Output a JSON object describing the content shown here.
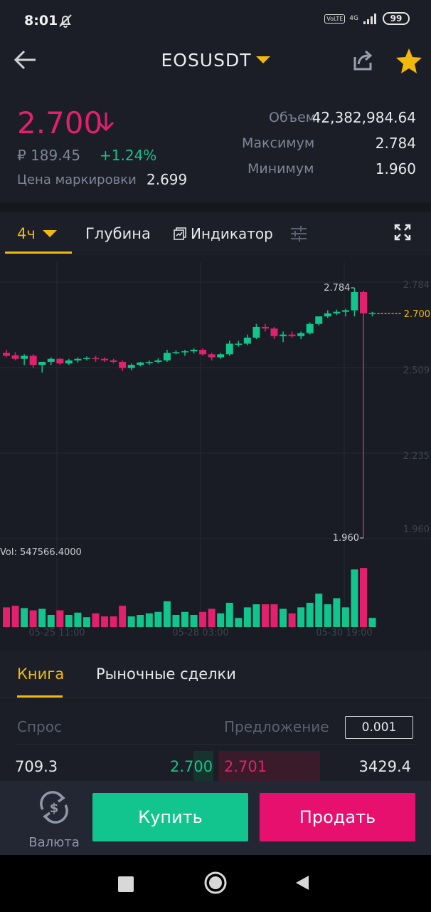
{
  "status_bar": {
    "time": "8:01",
    "network": "4G",
    "lte": "VoLTE",
    "battery": "99"
  },
  "header": {
    "pair": "EOSUSDT",
    "back_icon": "arrow-left-icon",
    "share_icon": "share-icon",
    "favorite_icon": "star-icon"
  },
  "ticker": {
    "last_price": "2.700",
    "fiat_price": "₽ 189.45",
    "change": "+1.24%",
    "mark_label": "Цена маркировки",
    "mark_value": "2.699",
    "volume_label": "Объем",
    "volume_value": "42,382,984.64",
    "high_label": "Максимум",
    "high_value": "2.784",
    "low_label": "Минимум",
    "low_value": "1.960"
  },
  "chart_tabs": {
    "interval": "4ч",
    "depth": "Глубина",
    "indicator": "Индикатор"
  },
  "chart_data": {
    "type": "candlestick",
    "x_labels": [
      "05-25 11:00",
      "05-28 03:00",
      "05-30 19:00"
    ],
    "y_ticks": [
      "2.784",
      "2.509",
      "2.235",
      "1.960"
    ],
    "y_range": [
      1.96,
      2.784
    ],
    "current_price": "2.700",
    "high_marker": "2.784",
    "low_marker": "1.960",
    "volume_label": "Vol: 547566.4000",
    "colors": {
      "up": "#12c48d",
      "down": "#e2206e",
      "price_line": "#f0b90b"
    },
    "candles": [
      {
        "o": 2.57,
        "h": 2.58,
        "l": 2.555,
        "c": 2.56,
        "v": 26
      },
      {
        "o": 2.562,
        "h": 2.572,
        "l": 2.545,
        "c": 2.55,
        "v": 28
      },
      {
        "o": 2.55,
        "h": 2.565,
        "l": 2.53,
        "c": 2.56,
        "v": 25
      },
      {
        "o": 2.56,
        "h": 2.565,
        "l": 2.52,
        "c": 2.53,
        "v": 22
      },
      {
        "o": 2.53,
        "h": 2.54,
        "l": 2.505,
        "c": 2.54,
        "v": 24
      },
      {
        "o": 2.54,
        "h": 2.555,
        "l": 2.53,
        "c": 2.55,
        "v": 16
      },
      {
        "o": 2.55,
        "h": 2.552,
        "l": 2.53,
        "c": 2.535,
        "v": 22
      },
      {
        "o": 2.535,
        "h": 2.55,
        "l": 2.53,
        "c": 2.545,
        "v": 16
      },
      {
        "o": 2.545,
        "h": 2.555,
        "l": 2.538,
        "c": 2.55,
        "v": 19
      },
      {
        "o": 2.55,
        "h": 2.558,
        "l": 2.545,
        "c": 2.553,
        "v": 13
      },
      {
        "o": 2.553,
        "h": 2.56,
        "l": 2.54,
        "c": 2.55,
        "v": 18
      },
      {
        "o": 2.55,
        "h": 2.555,
        "l": 2.54,
        "c": 2.545,
        "v": 14
      },
      {
        "o": 2.545,
        "h": 2.55,
        "l": 2.535,
        "c": 2.54,
        "v": 14
      },
      {
        "o": 2.54,
        "h": 2.545,
        "l": 2.51,
        "c": 2.52,
        "v": 28
      },
      {
        "o": 2.52,
        "h": 2.535,
        "l": 2.512,
        "c": 2.53,
        "v": 14
      },
      {
        "o": 2.53,
        "h": 2.54,
        "l": 2.525,
        "c": 2.538,
        "v": 16
      },
      {
        "o": 2.538,
        "h": 2.545,
        "l": 2.53,
        "c": 2.54,
        "v": 18
      },
      {
        "o": 2.54,
        "h": 2.552,
        "l": 2.535,
        "c": 2.545,
        "v": 20
      },
      {
        "o": 2.545,
        "h": 2.58,
        "l": 2.54,
        "c": 2.57,
        "v": 34
      },
      {
        "o": 2.57,
        "h": 2.578,
        "l": 2.565,
        "c": 2.572,
        "v": 16
      },
      {
        "o": 2.572,
        "h": 2.58,
        "l": 2.56,
        "c": 2.575,
        "v": 20
      },
      {
        "o": 2.575,
        "h": 2.585,
        "l": 2.568,
        "c": 2.58,
        "v": 16
      },
      {
        "o": 2.58,
        "h": 2.585,
        "l": 2.56,
        "c": 2.565,
        "v": 20
      },
      {
        "o": 2.565,
        "h": 2.57,
        "l": 2.545,
        "c": 2.555,
        "v": 24
      },
      {
        "o": 2.555,
        "h": 2.57,
        "l": 2.55,
        "c": 2.565,
        "v": 18
      },
      {
        "o": 2.565,
        "h": 2.61,
        "l": 2.56,
        "c": 2.6,
        "v": 32
      },
      {
        "o": 2.6,
        "h": 2.61,
        "l": 2.59,
        "c": 2.6,
        "v": 12
      },
      {
        "o": 2.6,
        "h": 2.63,
        "l": 2.595,
        "c": 2.62,
        "v": 26
      },
      {
        "o": 2.62,
        "h": 2.665,
        "l": 2.615,
        "c": 2.655,
        "v": 30
      },
      {
        "o": 2.655,
        "h": 2.665,
        "l": 2.64,
        "c": 2.65,
        "v": 30
      },
      {
        "o": 2.65,
        "h": 2.655,
        "l": 2.615,
        "c": 2.625,
        "v": 30
      },
      {
        "o": 2.625,
        "h": 2.64,
        "l": 2.605,
        "c": 2.63,
        "v": 24
      },
      {
        "o": 2.63,
        "h": 2.64,
        "l": 2.62,
        "c": 2.625,
        "v": 18
      },
      {
        "o": 2.625,
        "h": 2.64,
        "l": 2.615,
        "c": 2.635,
        "v": 26
      },
      {
        "o": 2.635,
        "h": 2.67,
        "l": 2.63,
        "c": 2.665,
        "v": 32
      },
      {
        "o": 2.665,
        "h": 2.69,
        "l": 2.66,
        "c": 2.69,
        "v": 44
      },
      {
        "o": 2.69,
        "h": 2.71,
        "l": 2.685,
        "c": 2.7,
        "v": 30
      },
      {
        "o": 2.7,
        "h": 2.712,
        "l": 2.695,
        "c": 2.705,
        "v": 38
      },
      {
        "o": 2.705,
        "h": 2.715,
        "l": 2.69,
        "c": 2.71,
        "v": 26
      },
      {
        "o": 2.71,
        "h": 2.784,
        "l": 2.69,
        "c": 2.77,
        "v": 76
      },
      {
        "o": 2.77,
        "h": 2.775,
        "l": 1.96,
        "c": 2.7,
        "v": 78
      },
      {
        "o": 2.7,
        "h": 2.705,
        "l": 2.69,
        "c": 2.702,
        "v": 12
      }
    ]
  },
  "book_tabs": {
    "book": "Книга",
    "trades": "Рыночные сделки"
  },
  "order_book": {
    "bid_label": "Спрос",
    "ask_label": "Предложение",
    "precision": "0.001",
    "bid_qty": "709.3",
    "bid_price": "2.700",
    "ask_price": "2.701",
    "ask_qty": "3429.4"
  },
  "actions": {
    "currency": "Валюта",
    "buy": "Купить",
    "sell": "Продать"
  }
}
